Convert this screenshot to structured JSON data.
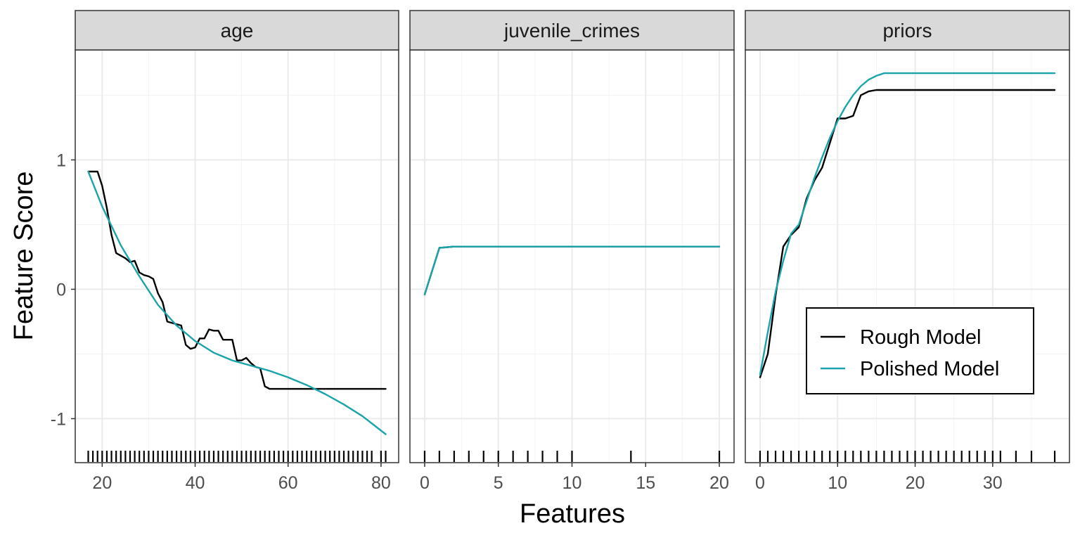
{
  "figure": {
    "x_axis_title": "Features",
    "y_axis_title": "Feature Score"
  },
  "colors": {
    "rough": "#000000",
    "polished": "#1aa3aa",
    "strip_fill": "#d9d9d9",
    "grid_major": "#ebebeb",
    "grid_minor": "#f3f3f3",
    "panel_border": "#333333",
    "tick_text": "#4d4d4d"
  },
  "legend": {
    "placement": "inside bottom-right of priors panel",
    "items": [
      {
        "label": "Rough Model",
        "series": "rough"
      },
      {
        "label": "Polished Model",
        "series": "polished"
      }
    ]
  },
  "chart_data": {
    "type": "line",
    "layout": "facets-shared-y",
    "y_axis": {
      "label": "Feature Score",
      "ylim": [
        -1.34,
        1.85
      ],
      "ticks": [
        -1,
        0,
        1
      ],
      "tick_labels": [
        "-1",
        "0",
        "1"
      ]
    },
    "grid": true,
    "panels": [
      {
        "title": "age",
        "xlim": [
          14.2,
          83.8
        ],
        "xticks": [
          20,
          40,
          60,
          80
        ],
        "xtick_labels": [
          "20",
          "40",
          "60",
          "80"
        ],
        "series": [
          {
            "name": "Rough Model",
            "key": "rough",
            "points": [
              [
                17,
                0.91
              ],
              [
                19,
                0.91
              ],
              [
                20,
                0.8
              ],
              [
                21,
                0.63
              ],
              [
                22,
                0.42
              ],
              [
                23,
                0.28
              ],
              [
                25,
                0.24
              ],
              [
                26,
                0.21
              ],
              [
                27,
                0.22
              ],
              [
                28,
                0.13
              ],
              [
                29,
                0.11
              ],
              [
                30,
                0.1
              ],
              [
                31,
                0.08
              ],
              [
                32,
                -0.03
              ],
              [
                33,
                -0.1
              ],
              [
                34,
                -0.25
              ],
              [
                36,
                -0.27
              ],
              [
                37,
                -0.28
              ],
              [
                38,
                -0.43
              ],
              [
                39,
                -0.46
              ],
              [
                40,
                -0.45
              ],
              [
                41,
                -0.38
              ],
              [
                42,
                -0.38
              ],
              [
                43,
                -0.31
              ],
              [
                44,
                -0.32
              ],
              [
                45,
                -0.32
              ],
              [
                46,
                -0.39
              ],
              [
                48,
                -0.39
              ],
              [
                49,
                -0.55
              ],
              [
                50,
                -0.55
              ],
              [
                51,
                -0.53
              ],
              [
                52,
                -0.57
              ],
              [
                53,
                -0.6
              ],
              [
                54,
                -0.61
              ],
              [
                55,
                -0.75
              ],
              [
                56,
                -0.77
              ],
              [
                60,
                -0.77
              ],
              [
                70,
                -0.77
              ],
              [
                81,
                -0.77
              ]
            ]
          },
          {
            "name": "Polished Model",
            "key": "polished",
            "points": [
              [
                17,
                0.91
              ],
              [
                20,
                0.64
              ],
              [
                24,
                0.34
              ],
              [
                28,
                0.1
              ],
              [
                32,
                -0.12
              ],
              [
                36,
                -0.28
              ],
              [
                40,
                -0.4
              ],
              [
                44,
                -0.49
              ],
              [
                48,
                -0.55
              ],
              [
                52,
                -0.59
              ],
              [
                56,
                -0.63
              ],
              [
                60,
                -0.68
              ],
              [
                64,
                -0.74
              ],
              [
                68,
                -0.81
              ],
              [
                72,
                -0.89
              ],
              [
                76,
                -0.98
              ],
              [
                81,
                -1.12
              ]
            ]
          }
        ],
        "rug": [
          17,
          18,
          19,
          20,
          21,
          22,
          23,
          24,
          25,
          26,
          27,
          28,
          29,
          30,
          31,
          32,
          33,
          34,
          35,
          36,
          37,
          38,
          39,
          40,
          41,
          42,
          43,
          44,
          45,
          46,
          47,
          48,
          49,
          50,
          51,
          52,
          53,
          54,
          55,
          56,
          57,
          58,
          59,
          60,
          61,
          62,
          63,
          64,
          65,
          66,
          67,
          68,
          69,
          70,
          71,
          72,
          73,
          74,
          75,
          76,
          77,
          78,
          80,
          81
        ]
      },
      {
        "title": "juvenile_crimes",
        "xlim": [
          -1,
          21
        ],
        "xticks": [
          0,
          5,
          10,
          15,
          20
        ],
        "xtick_labels": [
          "0",
          "5",
          "10",
          "15",
          "20"
        ],
        "series": [
          {
            "name": "Rough Model",
            "key": "rough",
            "points": [
              [
                0,
                -0.04
              ],
              [
                1,
                0.32
              ],
              [
                2,
                0.33
              ],
              [
                20,
                0.33
              ]
            ]
          },
          {
            "name": "Polished Model",
            "key": "polished",
            "points": [
              [
                0,
                -0.04
              ],
              [
                1,
                0.32
              ],
              [
                2,
                0.33
              ],
              [
                20,
                0.33
              ]
            ]
          }
        ],
        "rug": [
          0,
          1,
          2,
          3,
          4,
          5,
          6,
          7,
          8,
          9,
          10,
          14,
          20
        ]
      },
      {
        "title": "priors",
        "xlim": [
          -1.9,
          39.9
        ],
        "xticks": [
          0,
          10,
          20,
          30
        ],
        "xtick_labels": [
          "0",
          "10",
          "20",
          "30"
        ],
        "series": [
          {
            "name": "Rough Model",
            "key": "rough",
            "points": [
              [
                0,
                -0.68
              ],
              [
                1,
                -0.5
              ],
              [
                2,
                -0.05
              ],
              [
                3,
                0.33
              ],
              [
                4,
                0.42
              ],
              [
                5,
                0.48
              ],
              [
                6,
                0.7
              ],
              [
                7,
                0.84
              ],
              [
                8,
                0.94
              ],
              [
                9,
                1.13
              ],
              [
                10,
                1.32
              ],
              [
                11,
                1.32
              ],
              [
                12,
                1.34
              ],
              [
                13,
                1.5
              ],
              [
                14,
                1.53
              ],
              [
                15,
                1.54
              ],
              [
                20,
                1.54
              ],
              [
                30,
                1.54
              ],
              [
                38,
                1.54
              ]
            ]
          },
          {
            "name": "Polished Model",
            "key": "polished",
            "points": [
              [
                0,
                -0.66
              ],
              [
                1,
                -0.33
              ],
              [
                2,
                -0.02
              ],
              [
                3,
                0.22
              ],
              [
                4,
                0.43
              ],
              [
                5,
                0.5
              ],
              [
                6,
                0.68
              ],
              [
                7,
                0.86
              ],
              [
                8,
                1.02
              ],
              [
                9,
                1.17
              ],
              [
                10,
                1.3
              ],
              [
                11,
                1.41
              ],
              [
                12,
                1.5
              ],
              [
                13,
                1.57
              ],
              [
                14,
                1.62
              ],
              [
                15,
                1.65
              ],
              [
                16,
                1.67
              ],
              [
                17,
                1.67
              ],
              [
                25,
                1.67
              ],
              [
                38,
                1.67
              ]
            ]
          }
        ],
        "rug": [
          0,
          1,
          2,
          3,
          4,
          5,
          6,
          7,
          8,
          9,
          10,
          11,
          12,
          13,
          14,
          15,
          16,
          17,
          18,
          19,
          20,
          21,
          22,
          23,
          24,
          25,
          26,
          27,
          28,
          29,
          30,
          31,
          33,
          35,
          38
        ]
      }
    ]
  }
}
